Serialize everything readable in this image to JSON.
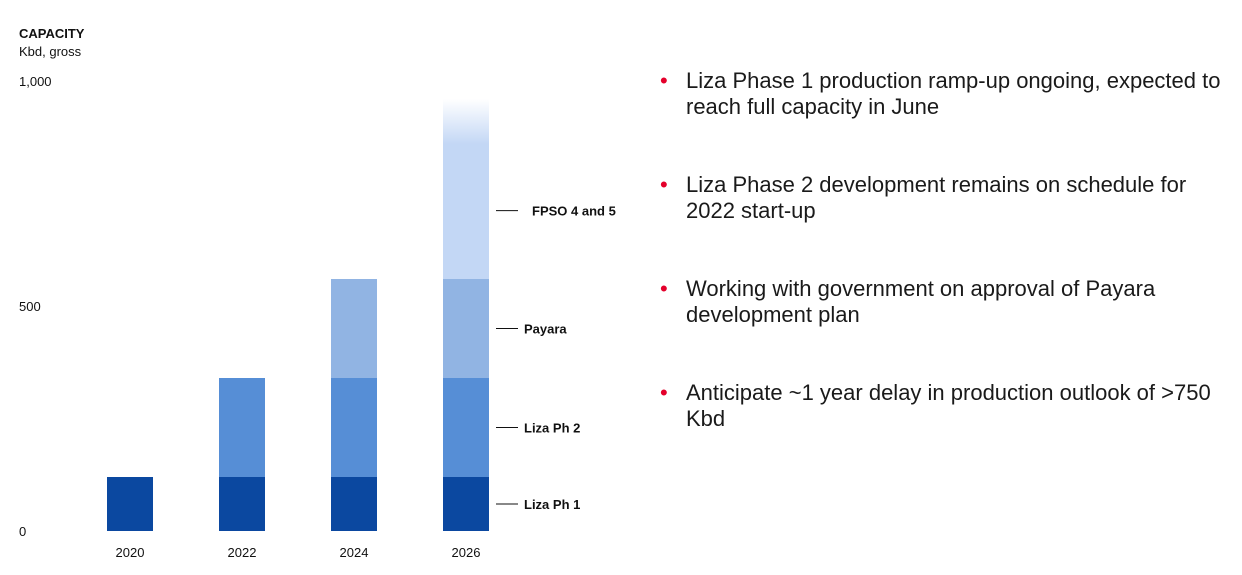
{
  "chart_data": {
    "type": "bar",
    "stacked": true,
    "title": "CAPACITY",
    "subtitle": "Kbd, gross",
    "categories": [
      "2020",
      "2022",
      "2024",
      "2026"
    ],
    "y_ticks": [
      "1,000",
      "500",
      "0"
    ],
    "ylim": [
      0,
      1000
    ],
    "series": [
      {
        "name": "Liza Ph 1",
        "values": [
          120,
          120,
          120,
          120
        ],
        "color": "#0b48a0"
      },
      {
        "name": "Liza Ph 2",
        "values": [
          0,
          220,
          220,
          220
        ],
        "color": "#568ed6"
      },
      {
        "name": "Payara",
        "values": [
          0,
          0,
          220,
          220
        ],
        "color": "#91b4e3"
      },
      {
        "name": "FPSO 4 and 5",
        "values": [
          0,
          0,
          0,
          400
        ],
        "color": "#c3d7f5",
        "fade_top": true
      }
    ]
  },
  "bullets": [
    "Liza Phase 1 production ramp-up ongoing, expected to reach full capacity in June",
    "Liza Phase 2 development remains on schedule for 2022 start-up",
    "Working with government on approval of Payara development plan",
    "Anticipate ~1 year delay in production outlook of >750 Kbd"
  ],
  "bullet_color": "#e4002b"
}
